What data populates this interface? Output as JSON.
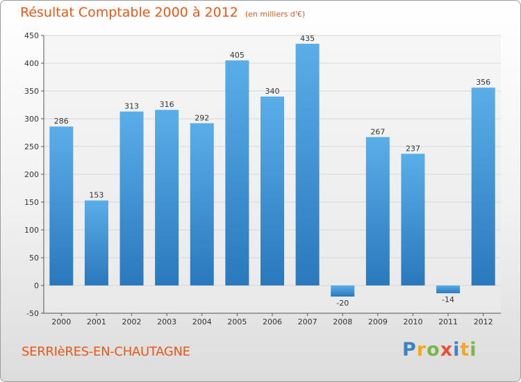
{
  "header": {
    "title": "Résultat Comptable 2000 à 2012",
    "subtitle": "(en milliers d'€)"
  },
  "footer": {
    "commune": "SERRIèRES-EN-CHAUTAGNE",
    "logo_letters": [
      "P",
      "r",
      "o",
      "x",
      "i",
      "t",
      "i"
    ]
  },
  "colors": {
    "title": "#e8581a",
    "bar_top": "#5aaee8",
    "bar_bottom": "#2a78bd",
    "grid": "#d6d6d6"
  },
  "chart_data": {
    "type": "bar",
    "title": "Résultat Comptable 2000 à 2012",
    "subtitle": "(en milliers d'€)",
    "xlabel": "",
    "ylabel": "",
    "categories": [
      "2000",
      "2001",
      "2002",
      "2003",
      "2004",
      "2005",
      "2006",
      "2007",
      "2008",
      "2009",
      "2010",
      "2011",
      "2012"
    ],
    "values": [
      286,
      153,
      313,
      316,
      292,
      405,
      340,
      435,
      -20,
      267,
      237,
      -14,
      356
    ],
    "ylim": [
      -50,
      450
    ],
    "yticks": [
      -50,
      0,
      50,
      100,
      150,
      200,
      250,
      300,
      350,
      400,
      450
    ],
    "grid": true
  }
}
